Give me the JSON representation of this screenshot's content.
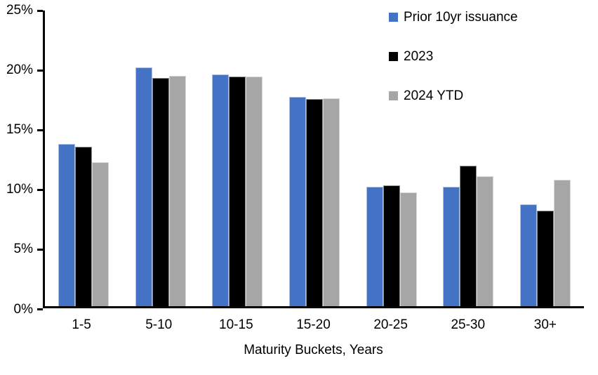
{
  "chart_data": {
    "type": "bar",
    "title": "",
    "categories": [
      "1-5",
      "5-10",
      "10-15",
      "15-20",
      "20-25",
      "25-30",
      "30+"
    ],
    "series": [
      {
        "name": "Prior 10yr issuance",
        "color": "#4472C4",
        "values": [
          13.7,
          20.2,
          19.6,
          17.7,
          10.1,
          10.1,
          8.6
        ]
      },
      {
        "name": "2023",
        "color": "#000000",
        "values": [
          13.5,
          19.3,
          19.4,
          17.5,
          10.2,
          11.9,
          8.1
        ]
      },
      {
        "name": "2024 YTD",
        "color": "#A6A6A6",
        "values": [
          12.2,
          19.5,
          19.4,
          17.6,
          9.6,
          11.0,
          10.7
        ]
      }
    ],
    "xlabel": "Maturity Buckets, Years",
    "ylabel": "",
    "ylim": [
      0,
      25
    ],
    "ytick_step": 5,
    "ytick_labels": [
      "0%",
      "5%",
      "10%",
      "15%",
      "20%",
      "25%"
    ],
    "legend_position": "top-right",
    "grid": false
  },
  "colors": {
    "axis": "#000000",
    "text": "#000000",
    "background": "#FFFFFF"
  }
}
